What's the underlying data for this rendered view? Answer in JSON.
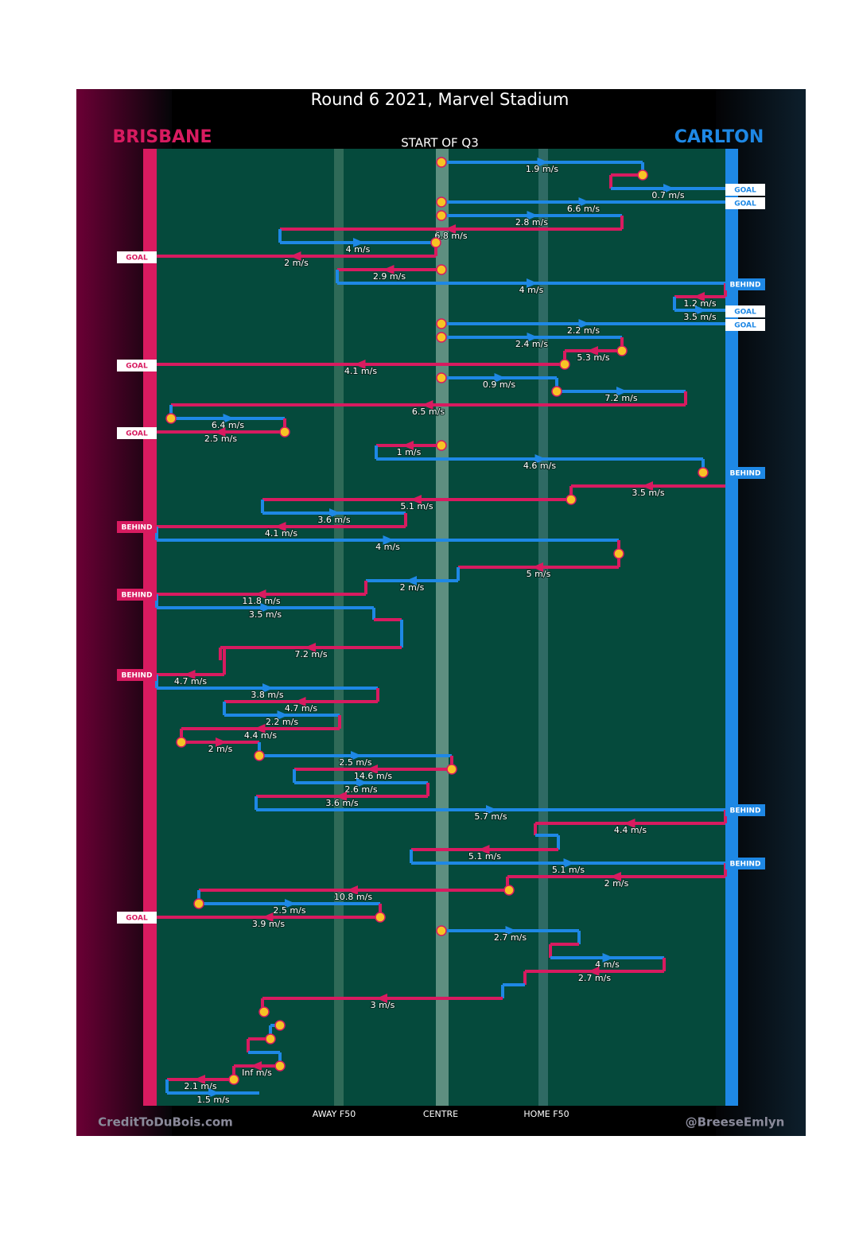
{
  "title": "Round 6 2021, Marvel Stadium",
  "teams": {
    "left": "BRISBANE",
    "right": "CARLTON"
  },
  "period": "START OF Q3",
  "field_labels": [
    "AWAY F50",
    "CENTRE",
    "HOME F50"
  ],
  "credits": {
    "left": "CreditToDuBois.com",
    "right": "@BreeseEmlyn"
  },
  "disposals": [
    "1.9 m/s",
    "0.7 m/s",
    "6.6 m/s",
    "2.8 m/s",
    "6.8 m/s",
    "4 m/s",
    "2 m/s",
    "2.9 m/s",
    "4 m/s",
    "1.2 m/s",
    "3.5 m/s",
    "2.2 m/s",
    "2.4 m/s",
    "5.3 m/s",
    "4.1 m/s",
    "0.9 m/s",
    "7.2 m/s",
    "6.5 m/s",
    "6.4 m/s",
    "2.5 m/s",
    "1 m/s",
    "4.6 m/s",
    "3.5 m/s",
    "5.1 m/s",
    "3.6 m/s",
    "4.1 m/s",
    "4 m/s",
    "5 m/s",
    "2 m/s",
    "11.8 m/s",
    "3.5 m/s",
    "7.2 m/s",
    "4.7 m/s",
    "3.8 m/s",
    "4.7 m/s",
    "2.2 m/s",
    "4.4 m/s",
    "2 m/s",
    "2.5 m/s",
    "14.6 m/s",
    "2.6 m/s",
    "3.6 m/s",
    "5.7 m/s",
    "4.4 m/s",
    "5.1 m/s",
    "5.1 m/s",
    "2 m/s",
    "10.8 m/s",
    "2.5 m/s",
    "3.9 m/s",
    "2.7 m/s",
    "4 m/s",
    "2.7 m/s",
    "3 m/s",
    "Inf m/s",
    "2.1 m/s",
    "1.5 m/s"
  ],
  "outcomes": [
    "GOAL",
    "GOAL",
    "GOAL",
    "BEHIND",
    "GOAL",
    "GOAL",
    "GOAL",
    "GOAL",
    "BEHIND",
    "BEHIND",
    "BEHIND",
    "BEHIND",
    "BEHIND",
    "BEHIND",
    "GOAL"
  ]
}
